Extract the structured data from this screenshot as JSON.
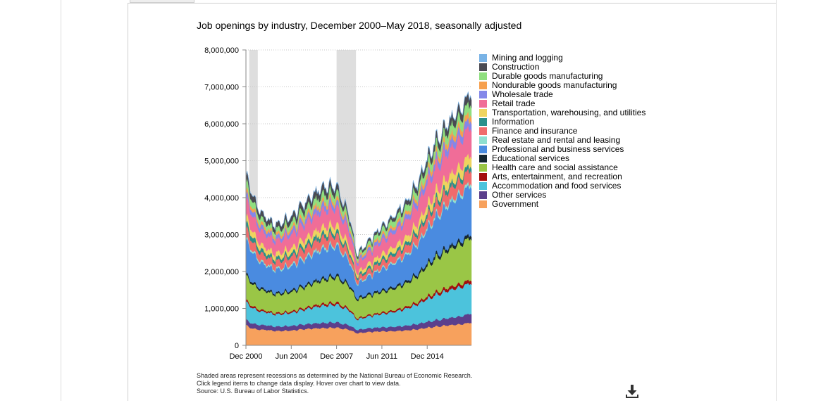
{
  "icons": {
    "download": "download-icon"
  },
  "chart_data": {
    "type": "area",
    "stacked": true,
    "title": "Job openings by industry, December 2000–May 2018, seasonally adjusted",
    "xlabel": "",
    "ylabel": "",
    "x_range": [
      "2000-12",
      "2018-05"
    ],
    "ylim": [
      0,
      8000000
    ],
    "y_ticks": [
      0,
      1000000,
      2000000,
      3000000,
      4000000,
      5000000,
      6000000,
      7000000,
      8000000
    ],
    "y_tick_labels": [
      "0",
      "1,000,000",
      "2,000,000",
      "3,000,000",
      "4,000,000",
      "5,000,000",
      "6,000,000",
      "7,000,000",
      "8,000,000"
    ],
    "x_ticks": [
      "2000-12",
      "2004-06",
      "2007-12",
      "2011-06",
      "2014-12"
    ],
    "x_tick_labels": [
      "Dec 2000",
      "Jun 2004",
      "Dec 2007",
      "Jun 2011",
      "Dec 2014"
    ],
    "grid": "horizontal dotted",
    "legend_position": "right",
    "recessions": [
      {
        "start": "2001-03",
        "end": "2001-11"
      },
      {
        "start": "2007-12",
        "end": "2009-06"
      }
    ],
    "x_anchors": [
      "2000-12",
      "2001-03",
      "2001-11",
      "2002-06",
      "2003-03",
      "2004-06",
      "2005-06",
      "2006-12",
      "2007-12",
      "2008-12",
      "2009-07",
      "2010-06",
      "2011-06",
      "2012-06",
      "2013-06",
      "2014-06",
      "2015-06",
      "2016-06",
      "2017-06",
      "2018-05"
    ],
    "series": [
      {
        "name": "Government",
        "color": "#f7a15d",
        "values": [
          560000,
          480000,
          430000,
          420000,
          390000,
          400000,
          440000,
          470000,
          480000,
          420000,
          330000,
          360000,
          380000,
          390000,
          410000,
          450000,
          500000,
          540000,
          560000,
          620000
        ]
      },
      {
        "name": "Other services",
        "color": "#5c3f8c",
        "values": [
          150000,
          140000,
          130000,
          125000,
          120000,
          125000,
          130000,
          140000,
          145000,
          120000,
          90000,
          100000,
          110000,
          120000,
          130000,
          150000,
          170000,
          190000,
          210000,
          250000
        ]
      },
      {
        "name": "Accommodation and food services",
        "color": "#4cc3dc",
        "values": [
          480000,
          450000,
          380000,
          350000,
          330000,
          350000,
          400000,
          470000,
          480000,
          400000,
          280000,
          320000,
          360000,
          410000,
          470000,
          560000,
          670000,
          740000,
          780000,
          830000
        ]
      },
      {
        "name": "Arts, entertainment, and recreation",
        "color": "#a30d0d",
        "values": [
          55000,
          50000,
          45000,
          40000,
          38000,
          40000,
          45000,
          52000,
          55000,
          45000,
          30000,
          35000,
          40000,
          45000,
          50000,
          60000,
          70000,
          80000,
          85000,
          95000
        ]
      },
      {
        "name": "Health care and social assistance",
        "color": "#9ac646",
        "values": [
          660000,
          620000,
          560000,
          520000,
          500000,
          520000,
          560000,
          640000,
          680000,
          600000,
          500000,
          520000,
          550000,
          590000,
          640000,
          740000,
          900000,
          1000000,
          1060000,
          1150000
        ]
      },
      {
        "name": "Educational services",
        "color": "#152630",
        "values": [
          60000,
          55000,
          50000,
          48000,
          45000,
          48000,
          52000,
          58000,
          60000,
          55000,
          45000,
          48000,
          50000,
          55000,
          60000,
          68000,
          78000,
          85000,
          88000,
          95000
        ]
      },
      {
        "name": "Professional and business services",
        "color": "#4a8be0",
        "values": [
          900000,
          860000,
          720000,
          650000,
          620000,
          650000,
          700000,
          780000,
          780000,
          620000,
          380000,
          460000,
          560000,
          640000,
          700000,
          830000,
          990000,
          1120000,
          1200000,
          1350000
        ]
      },
      {
        "name": "Real estate and rental and leasing",
        "color": "#8edfd0",
        "values": [
          55000,
          50000,
          45000,
          42000,
          40000,
          45000,
          52000,
          58000,
          55000,
          45000,
          30000,
          33000,
          37000,
          42000,
          46000,
          55000,
          63000,
          70000,
          75000,
          80000
        ]
      },
      {
        "name": "Finance and insurance",
        "color": "#f06b6b",
        "values": [
          280000,
          260000,
          220000,
          200000,
          190000,
          210000,
          240000,
          270000,
          250000,
          180000,
          120000,
          140000,
          170000,
          190000,
          210000,
          250000,
          300000,
          320000,
          330000,
          360000
        ]
      },
      {
        "name": "Information",
        "color": "#2a8f8a",
        "values": [
          150000,
          140000,
          110000,
          90000,
          85000,
          90000,
          100000,
          105000,
          100000,
          80000,
          60000,
          70000,
          80000,
          85000,
          90000,
          100000,
          110000,
          120000,
          115000,
          125000
        ]
      },
      {
        "name": "Transportation, warehousing, and utilities",
        "color": "#eed45f",
        "values": [
          180000,
          170000,
          150000,
          140000,
          130000,
          140000,
          160000,
          180000,
          180000,
          140000,
          90000,
          110000,
          130000,
          150000,
          170000,
          200000,
          230000,
          250000,
          260000,
          280000
        ]
      },
      {
        "name": "Retail trade",
        "color": "#f06d98",
        "values": [
          450000,
          430000,
          380000,
          360000,
          340000,
          360000,
          400000,
          450000,
          460000,
          360000,
          250000,
          290000,
          340000,
          390000,
          440000,
          530000,
          630000,
          690000,
          720000,
          760000
        ]
      },
      {
        "name": "Wholesale trade",
        "color": "#8387e9",
        "values": [
          150000,
          140000,
          120000,
          110000,
          105000,
          115000,
          130000,
          145000,
          140000,
          110000,
          70000,
          85000,
          100000,
          115000,
          130000,
          155000,
          180000,
          195000,
          200000,
          215000
        ]
      },
      {
        "name": "Nondurable goods manufacturing",
        "color": "#f6a04d",
        "values": [
          110000,
          100000,
          85000,
          80000,
          75000,
          80000,
          90000,
          100000,
          95000,
          75000,
          50000,
          60000,
          70000,
          80000,
          90000,
          110000,
          130000,
          140000,
          150000,
          165000
        ]
      },
      {
        "name": "Durable goods manufacturing",
        "color": "#8fdf7f",
        "values": [
          220000,
          200000,
          150000,
          130000,
          120000,
          140000,
          170000,
          190000,
          180000,
          130000,
          70000,
          100000,
          140000,
          160000,
          170000,
          190000,
          220000,
          230000,
          250000,
          280000
        ]
      },
      {
        "name": "Construction",
        "color": "#4a4a52",
        "values": [
          180000,
          170000,
          150000,
          140000,
          130000,
          150000,
          170000,
          190000,
          160000,
          100000,
          60000,
          70000,
          80000,
          100000,
          120000,
          150000,
          180000,
          200000,
          210000,
          230000
        ]
      },
      {
        "name": "Mining and logging",
        "color": "#79b3e6",
        "values": [
          15000,
          15000,
          12000,
          10000,
          10000,
          12000,
          15000,
          20000,
          22000,
          18000,
          8000,
          12000,
          18000,
          20000,
          22000,
          28000,
          20000,
          15000,
          20000,
          25000
        ]
      }
    ]
  },
  "legend": {
    "items": [
      {
        "label": "Mining and logging",
        "color": "#79b3e6"
      },
      {
        "label": "Construction",
        "color": "#4a4a52"
      },
      {
        "label": "Durable goods manufacturing",
        "color": "#8fdf7f"
      },
      {
        "label": "Nondurable goods manufacturing",
        "color": "#f6a04d"
      },
      {
        "label": "Wholesale trade",
        "color": "#8387e9"
      },
      {
        "label": "Retail trade",
        "color": "#f06d98"
      },
      {
        "label": "Transportation, warehousing, and utilities",
        "color": "#eed45f"
      },
      {
        "label": "Information",
        "color": "#2a8f8a"
      },
      {
        "label": "Finance and insurance",
        "color": "#f06b6b"
      },
      {
        "label": "Real estate and rental and leasing",
        "color": "#8edfd0"
      },
      {
        "label": "Professional and business services",
        "color": "#4a8be0"
      },
      {
        "label": "Educational services",
        "color": "#152630"
      },
      {
        "label": "Health care and social assistance",
        "color": "#9ac646"
      },
      {
        "label": "Arts, entertainment, and recreation",
        "color": "#a30d0d"
      },
      {
        "label": "Accommodation and food services",
        "color": "#4cc3dc"
      },
      {
        "label": "Other services",
        "color": "#5c3f8c"
      },
      {
        "label": "Government",
        "color": "#f7a15d"
      }
    ]
  },
  "footnotes": {
    "line1": "Shaded areas represent recessions as determined by the National Bureau of Economic Research.",
    "line2": "Click legend items to change data display. Hover over chart to view data.",
    "line3": "Source: U.S. Bureau of Labor Statistics."
  }
}
